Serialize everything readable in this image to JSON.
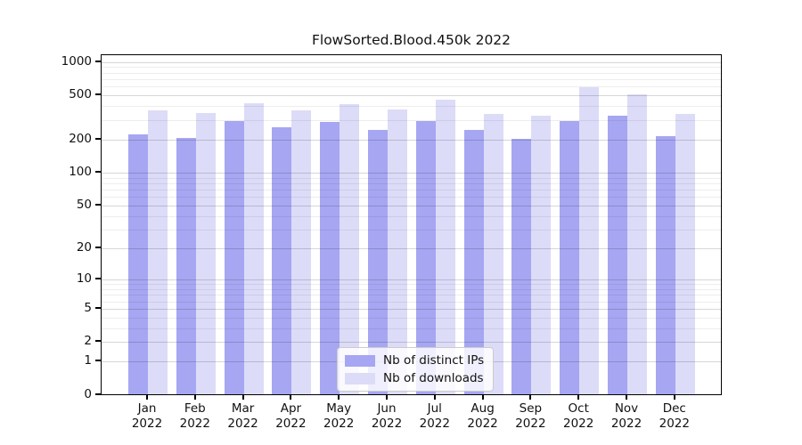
{
  "title": "FlowSorted.Blood.450k 2022",
  "chart_data": {
    "type": "bar",
    "title": "FlowSorted.Blood.450k 2022",
    "categories": [
      "Jan 2022",
      "Feb 2022",
      "Mar 2022",
      "Apr 2022",
      "May 2022",
      "Jun 2022",
      "Jul 2022",
      "Aug 2022",
      "Sep 2022",
      "Oct 2022",
      "Nov 2022",
      "Dec 2022"
    ],
    "series": [
      {
        "name": "Nb of distinct IPs",
        "color": "#a6a6f2",
        "values": [
          215,
          200,
          280,
          250,
          275,
          235,
          285,
          233,
          195,
          282,
          315,
          207
        ]
      },
      {
        "name": "Nb of downloads",
        "color": "#dcdcf8",
        "values": [
          355,
          335,
          410,
          350,
          398,
          362,
          438,
          330,
          315,
          575,
          495,
          327
        ]
      }
    ],
    "yscale": "log1p",
    "ylim": [
      0,
      1001
    ],
    "y_ticks": [
      0,
      1,
      2,
      5,
      10,
      20,
      50,
      100,
      200,
      500,
      1000
    ],
    "y_minor_gridlines": [
      3,
      4,
      6,
      7,
      8,
      9,
      30,
      40,
      60,
      70,
      80,
      90,
      300,
      400,
      600,
      700,
      800,
      900
    ],
    "grid": "horizontal",
    "legend_position": "bottom-center",
    "xlabel": "",
    "ylabel": ""
  },
  "colors": {
    "background": "#ffffff",
    "spine": "#000000",
    "bar_dark": "#a6a6f2",
    "bar_light": "#dcdcf8",
    "text": "#111111"
  }
}
